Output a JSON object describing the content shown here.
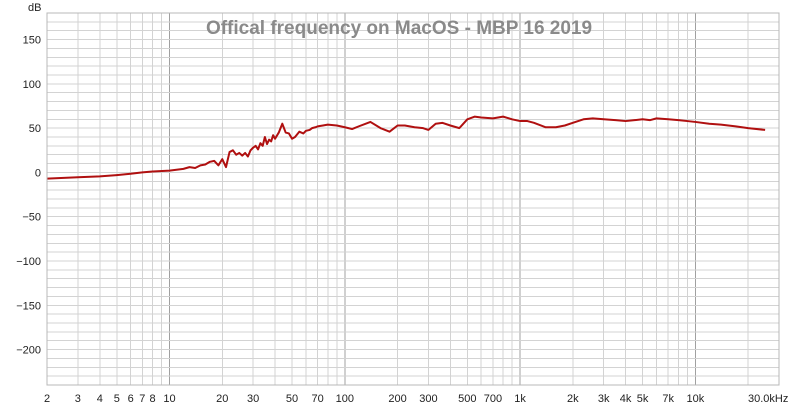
{
  "chart_data": {
    "type": "line",
    "title": "Offical frequency on MacOS - MBP 16 2019",
    "ylabel": "dB",
    "xlabel": "",
    "x_unit_label": "30.0kHz",
    "xscale": "log",
    "xlim": [
      2,
      30000
    ],
    "ylim": [
      -240,
      180
    ],
    "grid": true,
    "colors": {
      "line": "#b01010",
      "grid": "#d3d3d3",
      "grid_decade": "#a0a0a0",
      "frame": "#b8b8b8",
      "title": "#8a8a8a"
    },
    "y_ticks": [
      {
        "value": 150,
        "label": "150"
      },
      {
        "value": 100,
        "label": "100"
      },
      {
        "value": 50,
        "label": "50"
      },
      {
        "value": 0,
        "label": "0"
      },
      {
        "value": -50,
        "label": "−50"
      },
      {
        "value": -100,
        "label": "−100"
      },
      {
        "value": -150,
        "label": "−150"
      },
      {
        "value": -200,
        "label": "−200"
      }
    ],
    "x_ticks": [
      {
        "value": 2,
        "label": "2"
      },
      {
        "value": 3,
        "label": "3"
      },
      {
        "value": 4,
        "label": "4"
      },
      {
        "value": 5,
        "label": "5"
      },
      {
        "value": 6,
        "label": "6"
      },
      {
        "value": 7,
        "label": "7"
      },
      {
        "value": 8,
        "label": "8"
      },
      {
        "value": 10,
        "label": "10"
      },
      {
        "value": 20,
        "label": "20"
      },
      {
        "value": 30,
        "label": "30"
      },
      {
        "value": 50,
        "label": "50"
      },
      {
        "value": 70,
        "label": "70"
      },
      {
        "value": 100,
        "label": "100"
      },
      {
        "value": 200,
        "label": "200"
      },
      {
        "value": 300,
        "label": "300"
      },
      {
        "value": 500,
        "label": "500"
      },
      {
        "value": 700,
        "label": "700"
      },
      {
        "value": 1000,
        "label": "1k"
      },
      {
        "value": 2000,
        "label": "2k"
      },
      {
        "value": 3000,
        "label": "3k"
      },
      {
        "value": 4000,
        "label": "4k"
      },
      {
        "value": 5000,
        "label": "5k"
      },
      {
        "value": 7000,
        "label": "7k"
      },
      {
        "value": 10000,
        "label": "10k"
      }
    ],
    "series": [
      {
        "x": [
          2,
          3,
          4,
          5,
          6,
          7,
          8,
          10,
          12,
          13,
          14,
          15,
          16,
          17,
          18,
          19,
          20,
          21,
          22,
          23,
          24,
          25,
          26,
          27,
          28,
          29,
          30,
          31,
          32,
          33,
          34,
          35,
          36,
          37,
          38,
          39,
          40,
          42,
          44,
          46,
          48,
          50,
          52,
          55,
          58,
          60,
          63,
          65,
          68,
          70,
          75,
          80,
          90,
          100,
          110,
          120,
          140,
          160,
          180,
          200,
          220,
          250,
          280,
          300,
          330,
          360,
          400,
          450,
          500,
          550,
          600,
          700,
          800,
          900,
          1000,
          1100,
          1200,
          1400,
          1600,
          1800,
          2000,
          2300,
          2600,
          3000,
          3500,
          4000,
          4500,
          5000,
          5500,
          6000,
          7000,
          8000,
          9000,
          10000,
          12000,
          14000,
          17000,
          20000,
          25000
        ],
        "y": [
          -7,
          -5.5,
          -4.5,
          -3,
          -1.5,
          0,
          1,
          2,
          4,
          6,
          5,
          8,
          9,
          12,
          13,
          8,
          15,
          6,
          23,
          25,
          20,
          22,
          19,
          22,
          18,
          25,
          28,
          30,
          26,
          33,
          30,
          40,
          32,
          37,
          35,
          42,
          38,
          45,
          55,
          45,
          44,
          38,
          40,
          46,
          44,
          47,
          48,
          50,
          51,
          52,
          53,
          54,
          53,
          51,
          49,
          52,
          57,
          50,
          46,
          53,
          53,
          51,
          50,
          48,
          55,
          56,
          53,
          50,
          60,
          63,
          62,
          61,
          63,
          60,
          58,
          58,
          56,
          51,
          51,
          53,
          56,
          60,
          61,
          60,
          59,
          58,
          59,
          60,
          59,
          61,
          60,
          59,
          58,
          57,
          55,
          54,
          52,
          50,
          48
        ]
      }
    ]
  }
}
